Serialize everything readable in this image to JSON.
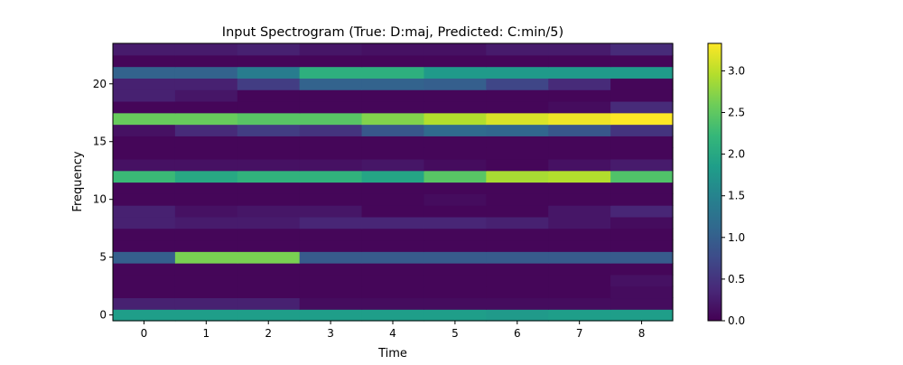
{
  "chart_data": {
    "type": "heatmap",
    "title": "Input Spectrogram (True: D:maj, Predicted: C:min/5)",
    "xlabel": "Time",
    "ylabel": "Frequency",
    "x_ticks": [
      0,
      1,
      2,
      3,
      4,
      5,
      6,
      7,
      8
    ],
    "y_ticks": [
      0,
      5,
      10,
      15,
      20
    ],
    "xlim": [
      -0.5,
      8.5
    ],
    "ylim": [
      -0.5,
      23.5
    ],
    "colormap": "viridis",
    "colorbar_ticks": [
      "0.0",
      "0.5",
      "1.0",
      "1.5",
      "2.0",
      "2.5",
      "3.0"
    ],
    "colorbar_range": [
      0,
      3.33
    ],
    "values": [
      [
        1.85,
        1.85,
        1.85,
        1.85,
        1.85,
        1.85,
        1.8,
        1.85,
        1.85
      ],
      [
        0.3,
        0.3,
        0.3,
        0.1,
        0.1,
        0.1,
        0.1,
        0.1,
        0.1
      ],
      [
        0.05,
        0.05,
        0.05,
        0.05,
        0.05,
        0.05,
        0.05,
        0.05,
        0.1
      ],
      [
        0.05,
        0.05,
        0.05,
        0.05,
        0.05,
        0.05,
        0.05,
        0.05,
        0.15
      ],
      [
        0.05,
        0.05,
        0.05,
        0.05,
        0.05,
        0.05,
        0.05,
        0.05,
        0.05
      ],
      [
        1.0,
        2.65,
        2.65,
        0.95,
        0.95,
        0.95,
        0.95,
        0.95,
        0.95
      ],
      [
        0.05,
        0.05,
        0.05,
        0.05,
        0.05,
        0.05,
        0.05,
        0.05,
        0.05
      ],
      [
        0.05,
        0.05,
        0.05,
        0.05,
        0.05,
        0.05,
        0.05,
        0.05,
        0.05
      ],
      [
        0.3,
        0.25,
        0.25,
        0.35,
        0.35,
        0.35,
        0.3,
        0.2,
        0.1
      ],
      [
        0.3,
        0.15,
        0.2,
        0.2,
        0.05,
        0.05,
        0.05,
        0.2,
        0.35
      ],
      [
        0.05,
        0.05,
        0.05,
        0.05,
        0.05,
        0.1,
        0.05,
        0.05,
        0.05
      ],
      [
        0.05,
        0.05,
        0.05,
        0.05,
        0.05,
        0.05,
        0.05,
        0.05,
        0.05
      ],
      [
        2.25,
        2.0,
        2.15,
        2.15,
        1.95,
        2.45,
        2.9,
        2.95,
        2.4
      ],
      [
        0.15,
        0.15,
        0.15,
        0.15,
        0.2,
        0.1,
        0.05,
        0.15,
        0.25
      ],
      [
        0.05,
        0.05,
        0.05,
        0.05,
        0.05,
        0.05,
        0.05,
        0.05,
        0.05
      ],
      [
        0.05,
        0.05,
        0.05,
        0.05,
        0.05,
        0.05,
        0.05,
        0.05,
        0.05
      ],
      [
        0.15,
        0.4,
        0.6,
        0.5,
        0.9,
        1.15,
        1.1,
        0.9,
        0.5
      ],
      [
        2.55,
        2.55,
        2.45,
        2.45,
        2.7,
        2.95,
        3.15,
        3.25,
        3.33
      ],
      [
        0.05,
        0.05,
        0.05,
        0.05,
        0.05,
        0.05,
        0.05,
        0.1,
        0.4
      ],
      [
        0.3,
        0.2,
        0.05,
        0.05,
        0.05,
        0.05,
        0.05,
        0.05,
        0.05
      ],
      [
        0.3,
        0.3,
        0.6,
        1.05,
        1.05,
        1.0,
        0.7,
        0.4,
        0.05
      ],
      [
        1.05,
        1.05,
        1.4,
        2.1,
        2.1,
        1.8,
        1.8,
        1.8,
        1.8
      ],
      [
        0.05,
        0.05,
        0.05,
        0.05,
        0.05,
        0.05,
        0.05,
        0.05,
        0.05
      ],
      [
        0.25,
        0.25,
        0.3,
        0.2,
        0.15,
        0.15,
        0.25,
        0.25,
        0.4
      ]
    ]
  }
}
